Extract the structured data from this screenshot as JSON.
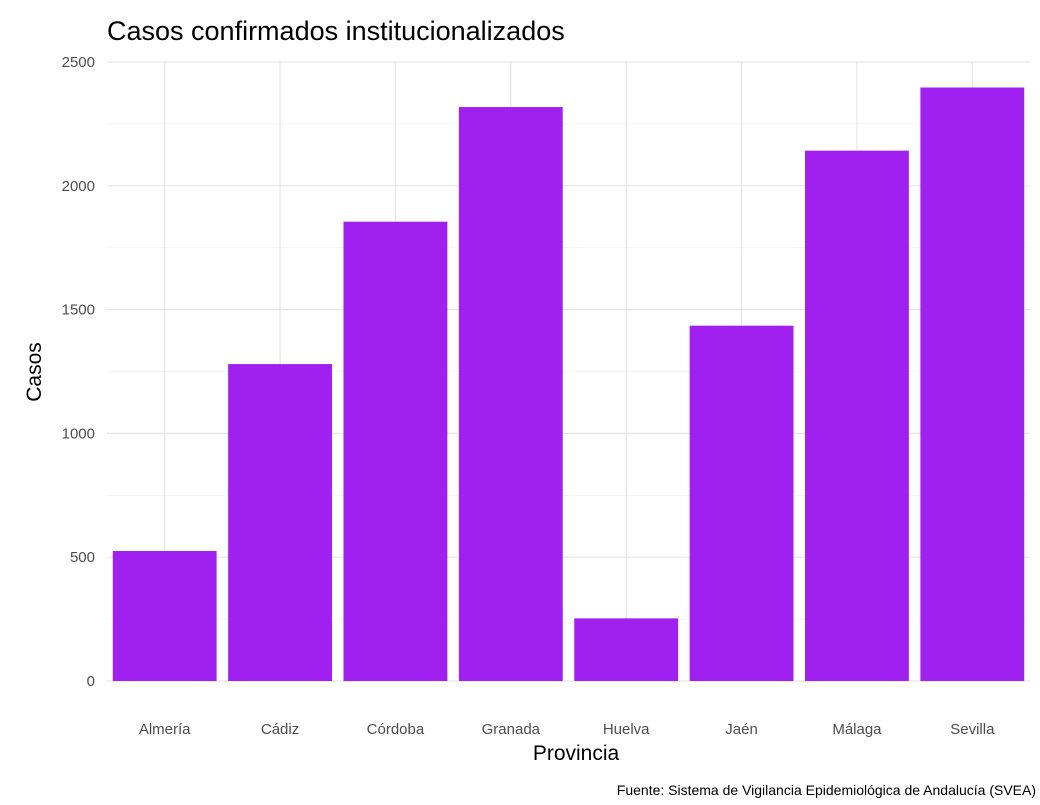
{
  "chart_data": {
    "type": "bar",
    "title": "Casos confirmados institucionalizados",
    "xlabel": "Provincia",
    "ylabel": "Casos",
    "caption": "Fuente: Sistema de Vigilancia Epidemiológica de Andalucía (SVEA)",
    "categories": [
      "Almería",
      "Cádiz",
      "Córdoba",
      "Granada",
      "Huelva",
      "Jaén",
      "Málaga",
      "Sevilla"
    ],
    "values": [
      525,
      1280,
      1855,
      2318,
      253,
      1435,
      2142,
      2397
    ],
    "ylim": [
      0,
      2500
    ],
    "yticks": [
      0,
      500,
      1000,
      1500,
      2000,
      2500
    ],
    "bar_color": "#a020f0",
    "grid": true,
    "legend": "none"
  }
}
